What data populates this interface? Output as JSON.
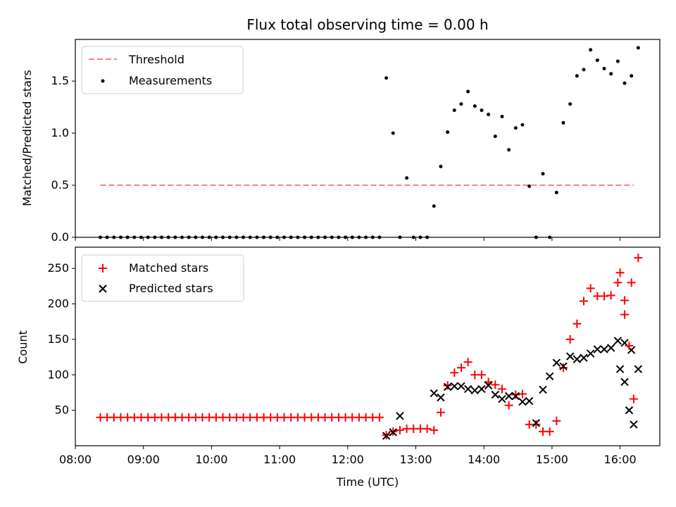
{
  "chart_data": [
    {
      "type": "scatter",
      "title": "Flux total observing time = 0.00 h",
      "ylabel": "Matched/Predicted stars",
      "xlabel": "",
      "xlim": [
        "08:00",
        "16:35"
      ],
      "ylim": [
        0,
        1.9
      ],
      "yticks": [
        "0.0",
        "0.5",
        "1.0",
        "1.5"
      ],
      "legend_position": "upper left",
      "series": [
        {
          "name": "Threshold",
          "style": "dashed-line",
          "color": "#ff7f7f",
          "x": [
            "08:22",
            "16:12"
          ],
          "y": [
            0.5,
            0.5
          ]
        },
        {
          "name": "Measurements",
          "style": "dot",
          "color": "#000000",
          "x": [
            "08:22",
            "08:28",
            "08:34",
            "08:40",
            "08:46",
            "08:52",
            "08:58",
            "09:04",
            "09:10",
            "09:16",
            "09:22",
            "09:28",
            "09:34",
            "09:40",
            "09:46",
            "09:52",
            "09:58",
            "10:04",
            "10:10",
            "10:16",
            "10:22",
            "10:28",
            "10:34",
            "10:40",
            "10:46",
            "10:52",
            "10:58",
            "11:04",
            "11:10",
            "11:16",
            "11:22",
            "11:28",
            "11:34",
            "11:40",
            "11:46",
            "11:52",
            "11:58",
            "12:04",
            "12:10",
            "12:16",
            "12:22",
            "12:28",
            "12:34",
            "12:40",
            "12:46",
            "12:52",
            "12:58",
            "13:04",
            "13:10",
            "13:16",
            "13:22",
            "13:28",
            "13:34",
            "13:40",
            "13:46",
            "13:52",
            "13:58",
            "14:04",
            "14:10",
            "14:16",
            "14:22",
            "14:28",
            "14:34",
            "14:40",
            "14:46",
            "14:52",
            "14:58",
            "15:04",
            "15:10",
            "15:16",
            "15:22",
            "15:28",
            "15:34",
            "15:40",
            "15:46",
            "15:52",
            "15:58",
            "16:04",
            "16:10",
            "16:16"
          ],
          "y": [
            0,
            0,
            0,
            0,
            0,
            0,
            0,
            0,
            0,
            0,
            0,
            0,
            0,
            0,
            0,
            0,
            0,
            0,
            0,
            0,
            0,
            0,
            0,
            0,
            0,
            0,
            0,
            0,
            0,
            0,
            0,
            0,
            0,
            0,
            0,
            0,
            0,
            0,
            0,
            0,
            0,
            0,
            1.53,
            1.0,
            0,
            0.57,
            0,
            0,
            0,
            0.3,
            0.68,
            1.01,
            1.22,
            1.28,
            1.4,
            1.26,
            1.22,
            1.18,
            0.97,
            1.16,
            0.84,
            1.05,
            1.08,
            0.49,
            0,
            0.61,
            0,
            0.43,
            1.1,
            1.28,
            1.55,
            1.61,
            1.8,
            1.7,
            1.62,
            1.57,
            1.69,
            1.48,
            1.55,
            1.82
          ]
        }
      ]
    },
    {
      "type": "scatter",
      "title": "",
      "ylabel": "Count",
      "xlabel": "Time (UTC)",
      "xlim": [
        "08:00",
        "16:35"
      ],
      "ylim": [
        0,
        280
      ],
      "yticks": [
        "50",
        "100",
        "150",
        "200",
        "250"
      ],
      "xticks": [
        "08:00",
        "09:00",
        "10:00",
        "11:00",
        "12:00",
        "13:00",
        "14:00",
        "15:00",
        "16:00"
      ],
      "legend_position": "upper left",
      "series": [
        {
          "name": "Matched stars",
          "marker": "plus",
          "color": "#ff0000",
          "x": [
            "08:22",
            "08:28",
            "08:34",
            "08:40",
            "08:46",
            "08:52",
            "08:58",
            "09:04",
            "09:10",
            "09:16",
            "09:22",
            "09:28",
            "09:34",
            "09:40",
            "09:46",
            "09:52",
            "09:58",
            "10:04",
            "10:10",
            "10:16",
            "10:22",
            "10:28",
            "10:34",
            "10:40",
            "10:46",
            "10:52",
            "10:58",
            "11:04",
            "11:10",
            "11:16",
            "11:22",
            "11:28",
            "11:34",
            "11:40",
            "11:46",
            "11:52",
            "11:58",
            "12:04",
            "12:10",
            "12:16",
            "12:22",
            "12:28",
            "12:34",
            "12:40",
            "12:46",
            "12:52",
            "12:58",
            "13:04",
            "13:10",
            "13:16",
            "13:22",
            "13:28",
            "13:34",
            "13:40",
            "13:46",
            "13:52",
            "13:58",
            "14:04",
            "14:10",
            "14:16",
            "14:22",
            "14:28",
            "14:34",
            "14:40",
            "14:46",
            "14:52",
            "14:58",
            "15:04",
            "15:10",
            "15:16",
            "15:22",
            "15:28",
            "15:34",
            "15:40",
            "15:46",
            "15:52",
            "15:58",
            "16:04",
            "16:10",
            "16:16"
          ],
          "y": [
            40,
            40,
            40,
            40,
            40,
            40,
            40,
            40,
            40,
            40,
            40,
            40,
            40,
            40,
            40,
            40,
            40,
            40,
            40,
            40,
            40,
            40,
            40,
            40,
            40,
            40,
            40,
            40,
            40,
            40,
            40,
            40,
            40,
            40,
            40,
            40,
            40,
            40,
            40,
            40,
            40,
            40,
            15,
            20,
            22,
            24,
            24,
            24,
            24,
            22,
            47,
            85,
            103,
            110,
            118,
            100,
            100,
            90,
            86,
            80,
            57,
            72,
            73,
            30,
            30,
            20,
            20,
            35,
            110,
            150,
            172,
            204,
            222,
            211,
            211,
            212,
            230,
            205,
            230,
            265
          ]
        },
        {
          "name": "Predicted stars",
          "marker": "x",
          "color": "#000000",
          "x": [
            "12:34",
            "12:40",
            "12:46",
            "13:16",
            "13:22",
            "13:28",
            "13:34",
            "13:40",
            "13:46",
            "13:52",
            "13:58",
            "14:04",
            "14:10",
            "14:16",
            "14:22",
            "14:28",
            "14:34",
            "14:40",
            "14:46",
            "14:52",
            "14:58",
            "15:04",
            "15:10",
            "15:16",
            "15:22",
            "15:28",
            "15:34",
            "15:40",
            "15:46",
            "15:52",
            "15:58",
            "16:04",
            "16:10",
            "16:16"
          ],
          "y": [
            14,
            19,
            42,
            74,
            68,
            83,
            84,
            84,
            80,
            78,
            80,
            85,
            72,
            66,
            70,
            70,
            62,
            63,
            32,
            79,
            98,
            117,
            112,
            126,
            122,
            124,
            130,
            136,
            136,
            138,
            148,
            145,
            135,
            108
          ]
        }
      ],
      "extra_tail": {
        "matched_x": [
          "16:00",
          "16:04",
          "16:08",
          "16:12"
        ],
        "matched_y": [
          244,
          185,
          141,
          66
        ],
        "predicted_x": [
          "16:00",
          "16:04",
          "16:08",
          "16:12"
        ],
        "predicted_y": [
          108,
          90,
          50,
          30
        ]
      }
    }
  ]
}
